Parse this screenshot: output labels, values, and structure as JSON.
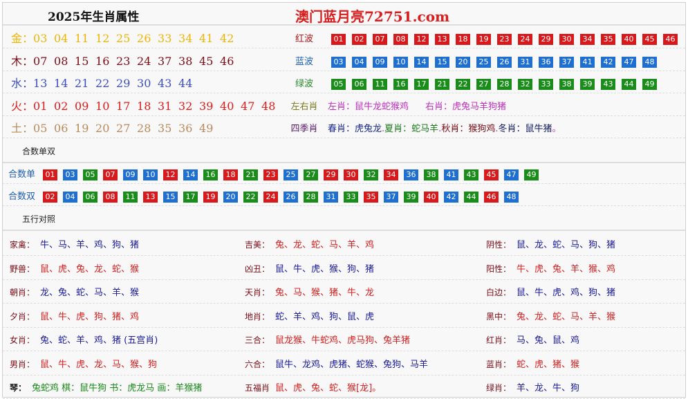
{
  "header": {
    "title": "2025年生肖属性",
    "site": "澳门蓝月亮72751.com"
  },
  "elements": [
    {
      "label": "金：",
      "color": "#f0b400",
      "numbers": [
        "03",
        "04",
        "11",
        "12",
        "25",
        "26",
        "33",
        "34",
        "41",
        "42"
      ]
    },
    {
      "label": "木：",
      "color": "#7a0a14",
      "numbers": [
        "07",
        "08",
        "15",
        "16",
        "23",
        "24",
        "37",
        "38",
        "45",
        "46"
      ]
    },
    {
      "label": "水：",
      "color": "#3a4ec0",
      "numbers": [
        "13",
        "14",
        "21",
        "22",
        "29",
        "30",
        "43",
        "44"
      ]
    },
    {
      "label": "火：",
      "color": "#e01818",
      "numbers": [
        "01",
        "02",
        "09",
        "10",
        "17",
        "18",
        "31",
        "32",
        "39",
        "40",
        "47",
        "48"
      ]
    },
    {
      "label": "土：",
      "color": "#b88a5a",
      "numbers": [
        "05",
        "06",
        "19",
        "20",
        "27",
        "28",
        "35",
        "36",
        "49"
      ]
    }
  ],
  "waves": [
    {
      "label": "红波",
      "color": "#d7191c",
      "text_color": "#b01818",
      "numbers": [
        "01",
        "02",
        "07",
        "08",
        "12",
        "13",
        "18",
        "19",
        "23",
        "24",
        "29",
        "30",
        "34",
        "35",
        "40",
        "45",
        "46"
      ]
    },
    {
      "label": "蓝波",
      "color": "#1e6fd0",
      "text_color": "#1e5eb0",
      "numbers": [
        "03",
        "04",
        "09",
        "10",
        "14",
        "15",
        "20",
        "25",
        "26",
        "31",
        "36",
        "37",
        "41",
        "42",
        "47",
        "48"
      ]
    },
    {
      "label": "绿波",
      "color": "#1a8c1a",
      "text_color": "#2a8a2a",
      "numbers": [
        "05",
        "06",
        "11",
        "16",
        "17",
        "21",
        "22",
        "27",
        "28",
        "32",
        "33",
        "38",
        "39",
        "43",
        "44",
        "49"
      ]
    }
  ],
  "left_right": {
    "label": "左右肖",
    "left": "左肖：鼠牛龙蛇猴鸡",
    "right": "右肖：虎兔马羊狗猪"
  },
  "seasons": {
    "label": "四季肖",
    "parts": [
      {
        "text": "春肖：虎兔龙",
        "color": "#1a2a8a"
      },
      {
        "text": ".",
        "color": "#a040a0"
      },
      {
        "text": "夏肖：蛇马羊",
        "color": "#1a7a1a"
      },
      {
        "text": ".",
        "color": "#a040a0"
      },
      {
        "text": "秋肖：猴狗鸡",
        "color": "#7a0a14"
      },
      {
        "text": ".",
        "color": "#a040a0"
      },
      {
        "text": "冬肖：鼠牛猪",
        "color": "#101a60"
      },
      {
        "text": "。",
        "color": "#c040c0"
      }
    ]
  },
  "heshu": {
    "title": "合数单双",
    "odd": {
      "label": "合数单",
      "numbers": [
        "01",
        "03",
        "05",
        "07",
        "09",
        "10",
        "12",
        "14",
        "16",
        "18",
        "21",
        "23",
        "25",
        "27",
        "29",
        "30",
        "32",
        "34",
        "36",
        "38",
        "41",
        "43",
        "45",
        "47",
        "49"
      ]
    },
    "even": {
      "label": "合数双",
      "numbers": [
        "02",
        "04",
        "06",
        "08",
        "11",
        "13",
        "15",
        "17",
        "19",
        "20",
        "22",
        "24",
        "26",
        "28",
        "31",
        "33",
        "35",
        "37",
        "39",
        "40",
        "42",
        "44",
        "46",
        "48"
      ]
    }
  },
  "wuxing": {
    "title": "五行对照",
    "colors": {
      "red": "#d42020",
      "blue": "#1a1a9a",
      "green": "#1a8a1a"
    },
    "rows": [
      [
        {
          "k": "家禽：",
          "v": "牛、马、羊、鸡、狗、猪",
          "c": "blue"
        },
        {
          "k": "吉美：",
          "v": "兔、龙、蛇、马、羊、鸡",
          "c": "red"
        },
        {
          "k": "阴性：",
          "v": "鼠、龙、蛇、马、狗、猪",
          "c": "blue"
        }
      ],
      [
        {
          "k": "野兽：",
          "v": "鼠、虎、兔、龙、蛇、猴",
          "c": "red"
        },
        {
          "k": "凶丑：",
          "v": "鼠、牛、虎、猴、狗、猪",
          "c": "blue"
        },
        {
          "k": "阳性：",
          "v": "牛、虎、兔、羊、猴、鸡",
          "c": "red"
        }
      ],
      [
        {
          "k": "朝肖：",
          "v": "龙、兔、蛇、马、羊、猴",
          "c": "blue"
        },
        {
          "k": "天肖：",
          "v": "兔、马、猴、猪、牛、龙",
          "c": "red"
        },
        {
          "k": "白边：",
          "v": "鼠、牛、虎、鸡、狗、猪",
          "c": "blue"
        }
      ],
      [
        {
          "k": "夕肖：",
          "v": "鼠、牛、虎、狗、猪、鸡",
          "c": "red"
        },
        {
          "k": "地肖：",
          "v": "蛇、羊、鸡、狗、鼠、虎",
          "c": "blue"
        },
        {
          "k": "黑中：",
          "v": "兔、龙、蛇、马、羊、猴",
          "c": "red"
        }
      ],
      [
        {
          "k": "女肖：",
          "v": "兔、蛇、羊、鸡、猪 (五宫肖)",
          "c": "blue"
        },
        {
          "k": "三合：",
          "v": "鼠龙猴、牛蛇鸡、虎马狗、兔羊猪",
          "c": "red"
        },
        {
          "k": "红肖：",
          "v": "马、兔、鼠、鸡",
          "c": "blue"
        }
      ],
      [
        {
          "k": "男肖：",
          "v": "鼠、牛、虎、龙、马、猴、狗",
          "c": "red"
        },
        {
          "k": "六合：",
          "v": "鼠牛、龙鸡、虎猪、蛇猴、兔狗、马羊",
          "c": "blue"
        },
        {
          "k": "蓝肖：",
          "v": "蛇、虎、猪、猴",
          "c": "red"
        }
      ],
      [
        {
          "k": "琴：",
          "v": "兔蛇鸡 棋：鼠牛狗 书：虎龙马 画：羊猴猪",
          "c": "green"
        },
        {
          "k": "五福肖",
          "v": "鼠、虎、兔、蛇、猴[龙]。",
          "c": "red"
        },
        {
          "k": "绿肖：",
          "v": "羊、龙、牛、狗",
          "c": "blue"
        }
      ]
    ]
  }
}
